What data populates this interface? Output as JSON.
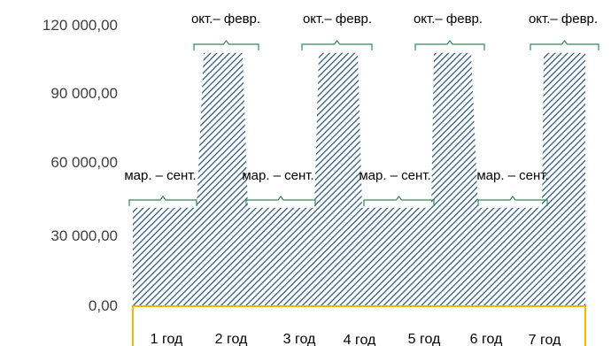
{
  "chart_data": {
    "type": "area",
    "title": "",
    "xlabel": "",
    "ylabel": "",
    "ylim": [
      0,
      120000
    ],
    "y_ticks": [
      0,
      30000,
      60000,
      90000,
      120000
    ],
    "y_tick_labels": [
      "0,00",
      "30 000,00",
      "60 000,00",
      "90 000,00",
      "120 000,00"
    ],
    "grid": false,
    "legend": "none",
    "categories": [
      "1 год",
      "2 год",
      "3 год",
      "4 год",
      "5 год",
      "6 год",
      "7 год"
    ],
    "low_season_label": "мар. – сент.",
    "high_season_label": "окт.– февр.",
    "low_value": 42000,
    "high_value": 108000,
    "segments": [
      {
        "season": "low",
        "value": 42000
      },
      {
        "season": "high",
        "value": 108000
      },
      {
        "season": "low",
        "value": 42000
      },
      {
        "season": "high",
        "value": 108000
      },
      {
        "season": "low",
        "value": 42000
      },
      {
        "season": "high",
        "value": 108000
      },
      {
        "season": "low",
        "value": 42000
      },
      {
        "season": "high",
        "value": 108000
      }
    ],
    "colors": {
      "fill": "#1f4e79",
      "bracket": "#2e8b57",
      "category_box": "#f2b705",
      "tick_text": "#404040"
    }
  }
}
